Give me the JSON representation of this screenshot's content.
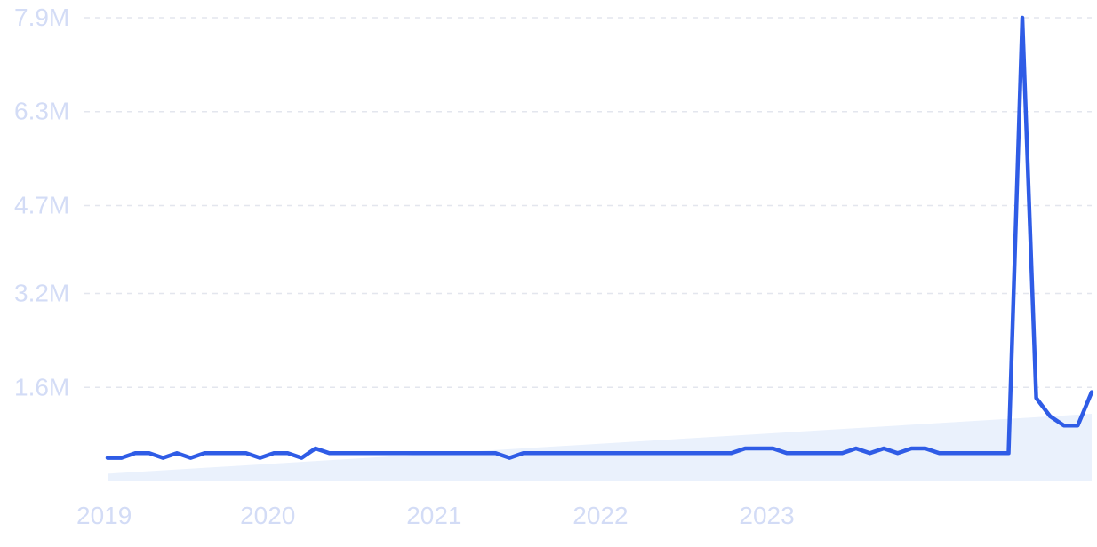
{
  "chart_data": {
    "type": "line",
    "title": "",
    "xlabel": "",
    "ylabel": "",
    "grid": true,
    "legend": "none",
    "ylim": [
      0,
      7.9
    ],
    "y_unit": "M",
    "y_ticks": [
      {
        "value": 1.6,
        "label": "1.6M"
      },
      {
        "value": 3.2,
        "label": "3.2M"
      },
      {
        "value": 4.7,
        "label": "4.7M"
      },
      {
        "value": 6.3,
        "label": "6.3M"
      },
      {
        "value": 7.9,
        "label": "7.9M"
      }
    ],
    "x_ticks": [
      "2019",
      "2020",
      "2021",
      "2022",
      "2023"
    ],
    "x_start": "2019-01",
    "series": [
      {
        "color": "#2f5ce6",
        "values": [
          0.4,
          0.4,
          0.48,
          0.48,
          0.4,
          0.48,
          0.4,
          0.48,
          0.48,
          0.48,
          0.48,
          0.4,
          0.48,
          0.48,
          0.4,
          0.56,
          0.48,
          0.48,
          0.48,
          0.48,
          0.48,
          0.48,
          0.48,
          0.48,
          0.48,
          0.48,
          0.48,
          0.48,
          0.48,
          0.4,
          0.48,
          0.48,
          0.48,
          0.48,
          0.48,
          0.48,
          0.48,
          0.48,
          0.48,
          0.48,
          0.48,
          0.48,
          0.48,
          0.48,
          0.48,
          0.48,
          0.56,
          0.56,
          0.56,
          0.48,
          0.48,
          0.48,
          0.48,
          0.48,
          0.56,
          0.48,
          0.56,
          0.48,
          0.56,
          0.56,
          0.48,
          0.48,
          0.48,
          0.48,
          0.48,
          0.48,
          7.9,
          1.42,
          1.11,
          0.95,
          0.95,
          1.52
        ]
      }
    ],
    "trend": {
      "color": "#eaf1fc",
      "start": 0.0,
      "end": 1.15
    }
  }
}
